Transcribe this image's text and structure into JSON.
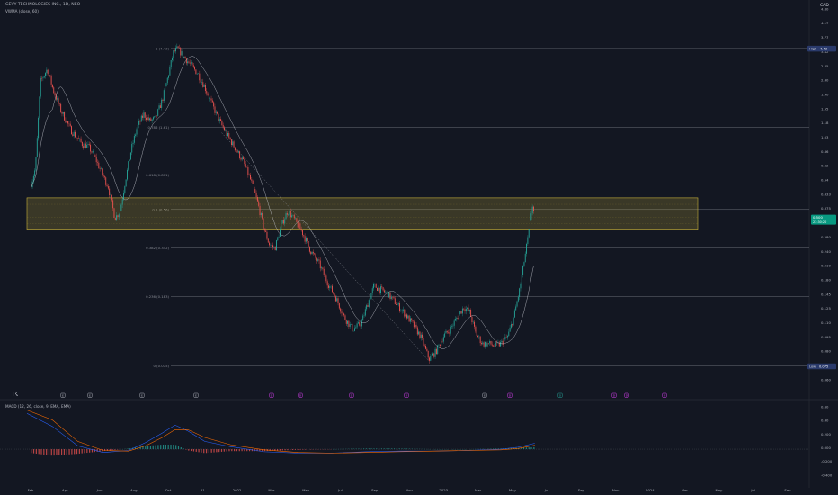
{
  "header": {
    "title": "GEVY TECHNOLOGIES INC., 1D, NEO",
    "indicator": "VWMA (close, 60)",
    "currency": "CAD"
  },
  "macd": {
    "title": "MACD (12, 26, close, 9, EMA, EMA)",
    "axis": [
      "0.60",
      "0.40",
      "0.200",
      "0.000",
      "-0.200",
      "-0.400"
    ]
  },
  "colors": {
    "background": "#131722",
    "up": "#26a69a",
    "down": "#ef5350",
    "zone": "#c8b13a",
    "price_tag": "#089981",
    "high_tag": "#2a3a6b",
    "macd_line": "#2962ff",
    "signal_line": "#ff6d00"
  },
  "chart_data": {
    "type": "candlestick",
    "y_scale": "log",
    "x_axis_labels": [
      "Feb",
      "Apr",
      "Jun",
      "Aug",
      "Oct",
      "21",
      "2022",
      "Mar",
      "May",
      "Jul",
      "Sep",
      "Nov",
      "2023",
      "Mar",
      "May",
      "Jul",
      "Sep",
      "Nov",
      "2024",
      "Mar",
      "May",
      "Jul",
      "Sep"
    ],
    "y_axis_labels": [
      "4.80",
      "4.17",
      "3.77",
      "3.42",
      "2.85",
      "2.40",
      "1.90",
      "1.55",
      "1.18",
      "1.03",
      "0.86",
      "0.62",
      "0.54",
      "0.433",
      "0.375",
      "0.325",
      "0.280",
      "0.240",
      "0.210",
      "0.180",
      "0.145",
      "0.125",
      "0.110",
      "0.095",
      "0.080",
      "0.065",
      "0.060"
    ],
    "fib_levels": [
      {
        "label": "1 (4.43)",
        "value": 4.43
      },
      {
        "label": "0.786 (1.61)",
        "value": 1.61
      },
      {
        "label": "0.618 (0.871)",
        "value": 0.871
      },
      {
        "label": "0.5 (0.56)",
        "value": 0.56
      },
      {
        "label": "0.382 (0.342)",
        "value": 0.342
      },
      {
        "label": "0.236 (0.183)",
        "value": 0.183
      },
      {
        "label": "0 (0.075)",
        "value": 0.075
      }
    ],
    "zone": {
      "top": 0.65,
      "bottom": 0.43
    },
    "current_price": "0.500",
    "current_price_sub": "23:30:20",
    "high_tag": {
      "label": "High",
      "value": "4.43"
    },
    "low_tag": {
      "label": "Low",
      "value": "0.075"
    },
    "price_path": [
      [
        0.5,
        0.78
      ],
      [
        1.0,
        0.95
      ],
      [
        1.6,
        2.9
      ],
      [
        2.4,
        3.4
      ],
      [
        3.1,
        2.6
      ],
      [
        4.0,
        2.0
      ],
      [
        5.2,
        1.55
      ],
      [
        6.5,
        1.3
      ],
      [
        7.3,
        1.25
      ],
      [
        8.0,
        1.1
      ],
      [
        8.8,
        0.9
      ],
      [
        9.6,
        0.75
      ],
      [
        10.4,
        0.5
      ],
      [
        11.0,
        0.55
      ],
      [
        11.6,
        0.8
      ],
      [
        12.3,
        1.2
      ],
      [
        13.0,
        1.6
      ],
      [
        13.8,
        1.9
      ],
      [
        14.5,
        1.75
      ],
      [
        15.2,
        1.8
      ],
      [
        16.0,
        2.3
      ],
      [
        16.6,
        3.0
      ],
      [
        17.3,
        4.2
      ],
      [
        17.8,
        4.43
      ],
      [
        18.5,
        4.0
      ],
      [
        19.3,
        3.6
      ],
      [
        20.2,
        3.2
      ],
      [
        21.0,
        2.7
      ],
      [
        21.8,
        2.2
      ],
      [
        22.6,
        1.8
      ],
      [
        23.5,
        1.5
      ],
      [
        24.5,
        1.25
      ],
      [
        25.5,
        1.05
      ],
      [
        26.5,
        0.8
      ],
      [
        27.3,
        0.6
      ],
      [
        28.0,
        0.44
      ],
      [
        28.6,
        0.36
      ],
      [
        29.3,
        0.34
      ],
      [
        30.0,
        0.45
      ],
      [
        30.8,
        0.55
      ],
      [
        31.5,
        0.5
      ],
      [
        32.5,
        0.42
      ],
      [
        33.5,
        0.33
      ],
      [
        34.5,
        0.28
      ],
      [
        35.5,
        0.22
      ],
      [
        36.5,
        0.18
      ],
      [
        37.5,
        0.14
      ],
      [
        38.5,
        0.12
      ],
      [
        39.5,
        0.13
      ],
      [
        40.3,
        0.17
      ],
      [
        41.0,
        0.21
      ],
      [
        41.8,
        0.2
      ],
      [
        42.6,
        0.19
      ],
      [
        43.5,
        0.17
      ],
      [
        44.5,
        0.15
      ],
      [
        45.5,
        0.13
      ],
      [
        46.5,
        0.11
      ],
      [
        47.5,
        0.082
      ],
      [
        48.3,
        0.09
      ],
      [
        49.2,
        0.11
      ],
      [
        50.0,
        0.12
      ],
      [
        50.8,
        0.14
      ],
      [
        51.6,
        0.16
      ],
      [
        52.3,
        0.15
      ],
      [
        53.0,
        0.115
      ],
      [
        53.8,
        0.1
      ],
      [
        54.6,
        0.1
      ],
      [
        55.3,
        0.097
      ],
      [
        56.0,
        0.1
      ],
      [
        56.8,
        0.11
      ],
      [
        57.5,
        0.14
      ],
      [
        58.2,
        0.2
      ],
      [
        58.8,
        0.3
      ],
      [
        59.3,
        0.42
      ],
      [
        59.7,
        0.6
      ],
      [
        60.0,
        0.5
      ]
    ],
    "macd_line": [
      [
        0,
        0.55
      ],
      [
        3,
        0.35
      ],
      [
        6,
        0.05
      ],
      [
        9,
        -0.05
      ],
      [
        12,
        -0.02
      ],
      [
        14,
        0.1
      ],
      [
        16,
        0.25
      ],
      [
        17.5,
        0.37
      ],
      [
        19,
        0.28
      ],
      [
        21,
        0.12
      ],
      [
        24,
        0.04
      ],
      [
        28,
        -0.04
      ],
      [
        32,
        -0.06
      ],
      [
        36,
        -0.06
      ],
      [
        40,
        -0.04
      ],
      [
        44,
        -0.03
      ],
      [
        48,
        -0.03
      ],
      [
        52,
        -0.02
      ],
      [
        56,
        0.0
      ],
      [
        58,
        0.03
      ],
      [
        60,
        0.09
      ]
    ],
    "signal_line": [
      [
        0,
        0.6
      ],
      [
        3,
        0.45
      ],
      [
        6,
        0.12
      ],
      [
        9,
        -0.02
      ],
      [
        12,
        -0.03
      ],
      [
        14,
        0.05
      ],
      [
        16,
        0.18
      ],
      [
        17.5,
        0.3
      ],
      [
        19,
        0.3
      ],
      [
        21,
        0.18
      ],
      [
        24,
        0.07
      ],
      [
        28,
        -0.01
      ],
      [
        32,
        -0.05
      ],
      [
        36,
        -0.06
      ],
      [
        40,
        -0.05
      ],
      [
        44,
        -0.04
      ],
      [
        48,
        -0.03
      ],
      [
        52,
        -0.02
      ],
      [
        56,
        -0.01
      ],
      [
        58,
        0.01
      ],
      [
        60,
        0.06
      ]
    ]
  },
  "markers": [
    "E",
    "E",
    "E",
    "E",
    "D",
    "D",
    "D",
    "D",
    "E",
    "D",
    "D",
    "D",
    "D",
    "D"
  ]
}
